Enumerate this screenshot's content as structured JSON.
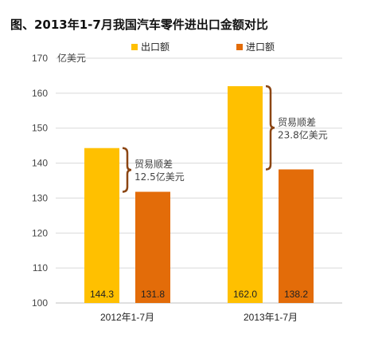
{
  "title": "图、2013年1-7月我国汽车零件进出口金额对比",
  "chart_data": {
    "type": "bar",
    "categories": [
      "2012年1-7月",
      "2013年1-7月"
    ],
    "series": [
      {
        "name": "出口额",
        "color": "#FFC000",
        "values": [
          144.3,
          162.0
        ],
        "value_labels": [
          "144.3",
          "162.0"
        ]
      },
      {
        "name": "进口额",
        "color": "#E36C09",
        "values": [
          131.8,
          138.2
        ],
        "value_labels": [
          "131.8",
          "138.2"
        ]
      }
    ],
    "ylim": [
      100,
      170
    ],
    "yticks": [
      100,
      110,
      120,
      130,
      140,
      150,
      160,
      170
    ],
    "ylabel": "亿美元",
    "grid": true,
    "legend": "top",
    "annotations": [
      {
        "category": 0,
        "line1": "贸易顺差",
        "line2": "12.5亿美元",
        "color": "#8B4513"
      },
      {
        "category": 1,
        "line1": "贸易顺差",
        "line2": "23.8亿美元",
        "color": "#8B4513"
      }
    ]
  }
}
